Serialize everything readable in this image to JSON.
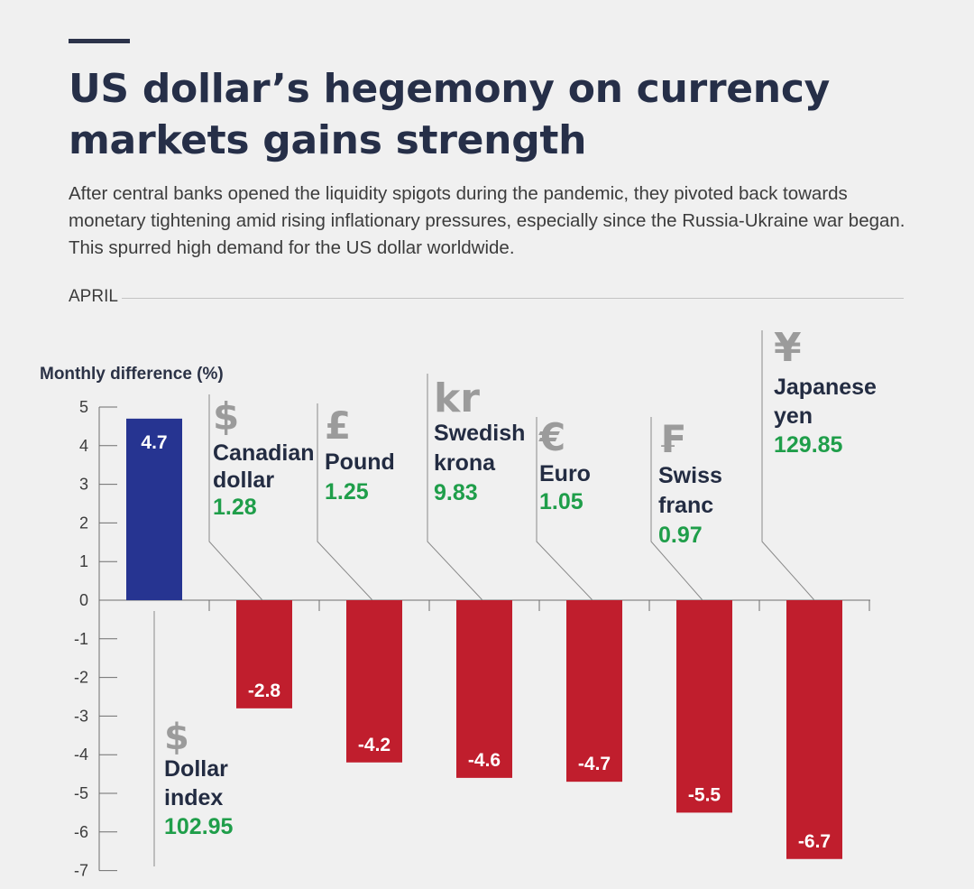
{
  "header": {
    "title": "US dollar’s hegemony on currency markets gains strength",
    "subtitle": "After central banks opened the liquidity spigots during the pandemic, they pivoted back towards monetary tightening amid rising inflationary pressures, especially since the Russia-Ukraine war began. This spurred high demand for the US dollar worldwide.",
    "period": "APRIL"
  },
  "colors": {
    "positive": "#263491",
    "negative": "#c01e2d",
    "rate": "#1f9e4a",
    "symbol": "#9b9b9b",
    "text": "#232c42"
  },
  "chart_data": {
    "type": "bar",
    "ylabel": "Monthly difference (%)",
    "ylim": [
      -7,
      5
    ],
    "yticks": [
      5,
      4,
      3,
      2,
      1,
      0,
      -1,
      -2,
      -3,
      -4,
      -5,
      -6,
      -7
    ],
    "grid": false,
    "categories": [
      {
        "name_lines": [
          "Dollar",
          "index"
        ],
        "symbol": "$",
        "symbol_icon": "dollar-icon",
        "rate": "102.95",
        "value": 4.7,
        "label": "4.7"
      },
      {
        "name_lines": [
          "Canadian",
          "dollar"
        ],
        "symbol": "$",
        "symbol_icon": "dollar-icon",
        "rate": "1.28",
        "value": -2.8,
        "label": "-2.8"
      },
      {
        "name_lines": [
          "Pound"
        ],
        "symbol": "£",
        "symbol_icon": "pound-icon",
        "rate": "1.25",
        "value": -4.2,
        "label": "-4.2"
      },
      {
        "name_lines": [
          "Swedish",
          "krona"
        ],
        "symbol": "kr",
        "symbol_icon": "krona-icon",
        "rate": "9.83",
        "value": -4.6,
        "label": "-4.6"
      },
      {
        "name_lines": [
          "Euro"
        ],
        "symbol": "€",
        "symbol_icon": "euro-icon",
        "rate": "1.05",
        "value": -4.7,
        "label": "-4.7"
      },
      {
        "name_lines": [
          "Swiss",
          "franc"
        ],
        "symbol": "₣",
        "symbol_icon": "franc-icon",
        "rate": "0.97",
        "value": -5.5,
        "label": "-5.5"
      },
      {
        "name_lines": [
          "Japanese",
          "yen"
        ],
        "symbol": "¥",
        "symbol_icon": "yen-icon",
        "rate": "129.85",
        "value": -6.7,
        "label": "-6.7"
      }
    ]
  }
}
